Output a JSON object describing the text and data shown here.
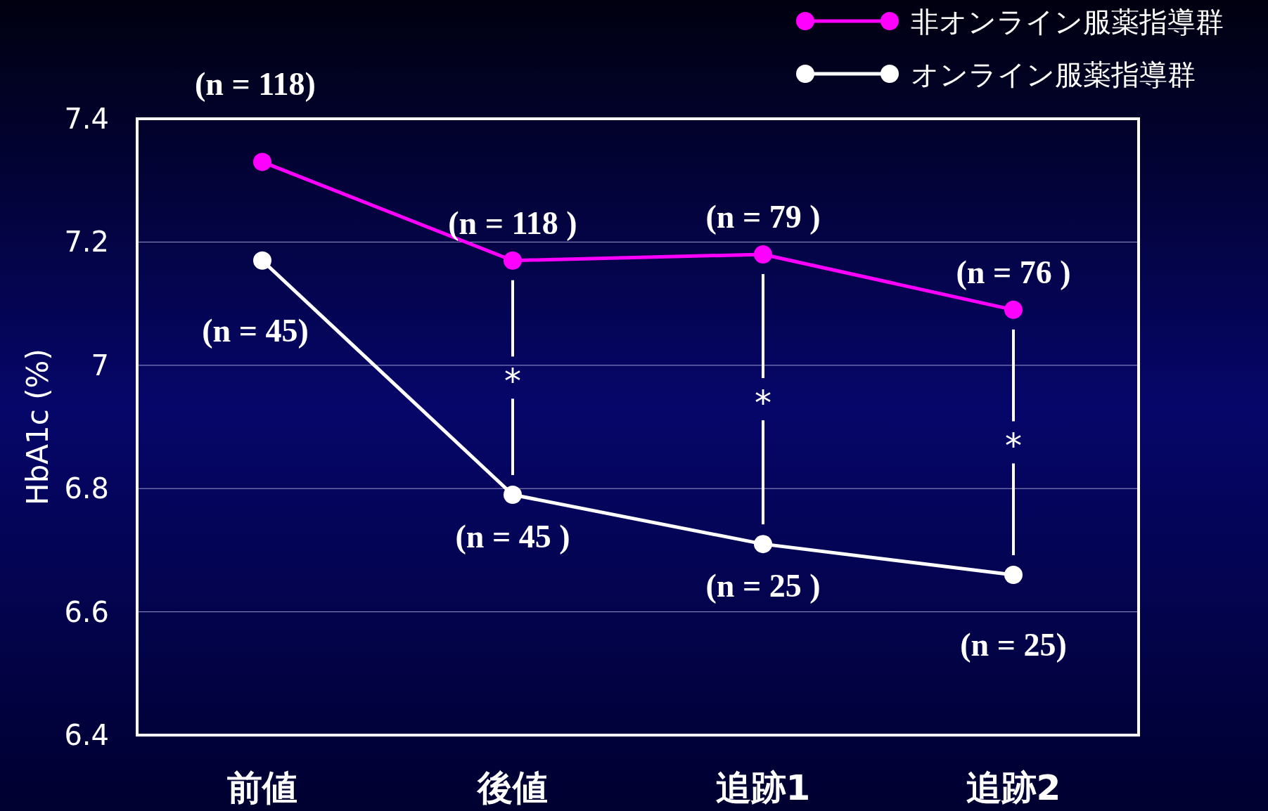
{
  "chart_data": {
    "type": "line",
    "ylabel": "HbA1c (%)",
    "categories": [
      "前値",
      "後値",
      "追跡1",
      "追跡2"
    ],
    "series": [
      {
        "name": "非オンライン服薬指導群",
        "color": "#ff00ff",
        "values": [
          7.33,
          7.17,
          7.18,
          7.09
        ]
      },
      {
        "name": "オンライン服薬指導群",
        "color": "#ffffff",
        "values": [
          7.17,
          6.79,
          6.71,
          6.66
        ]
      }
    ],
    "ylim": [
      6.4,
      7.4
    ],
    "yticks": [
      6.4,
      6.6,
      6.8,
      7,
      7.2,
      7.4
    ],
    "grid": "y",
    "marker": "circle",
    "line_style": "solid",
    "legend": "top right",
    "annotations": [
      {
        "text": "(n = 118)",
        "x": "前値",
        "y": 7.33
      },
      {
        "text": "(n = 118 )",
        "x": "後値",
        "y": 7.17
      },
      {
        "text": "(n = 79 )",
        "x": "追跡1",
        "y": 7.18
      },
      {
        "text": "(n = 76 )",
        "x": "追跡2",
        "y": 7.09
      },
      {
        "text": "(n = 45)",
        "x": "前値",
        "y": 7.17
      },
      {
        "text": "(n = 45 )",
        "x": "後値",
        "y": 6.79
      },
      {
        "text": "(n = 25 )",
        "x": "追跡1",
        "y": 6.71
      },
      {
        "text": "(n = 25)",
        "x": "追跡2",
        "y": 6.66
      },
      "*",
      "*",
      "*"
    ]
  }
}
